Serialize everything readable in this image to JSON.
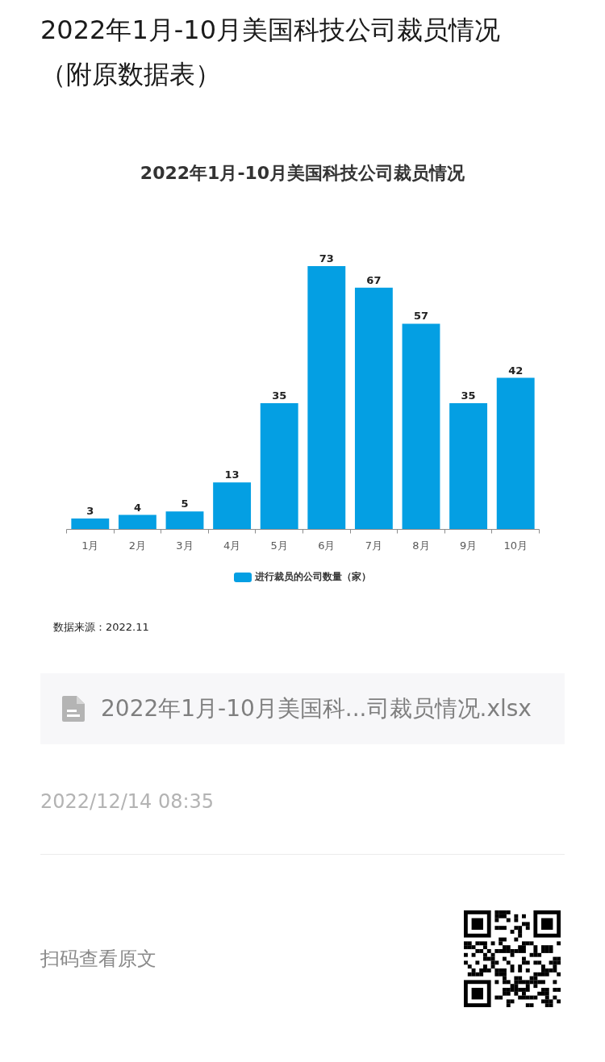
{
  "chart_data": {
    "type": "bar",
    "title": "2022年1月-10月美国科技公司裁员情况",
    "categories": [
      "1月",
      "2月",
      "3月",
      "4月",
      "5月",
      "6月",
      "7月",
      "8月",
      "9月",
      "10月"
    ],
    "series": [
      {
        "name": "进行裁员的公司数量（家）",
        "color": "#049fe3",
        "values": [
          3,
          4,
          5,
          13,
          35,
          73,
          67,
          57,
          35,
          42
        ]
      }
    ],
    "data_labels": true,
    "legend": "bottom",
    "tick_labels": "x",
    "grid": false,
    "annotations": [
      "2022年1月-10月美国科技公司裁员情况（附原数据表）",
      "数据来源：2022.11",
      "2022年1月-10月美国科...司裁员情况.xlsx",
      "2022/12/14 08:35",
      "扫码查看原文"
    ]
  }
}
